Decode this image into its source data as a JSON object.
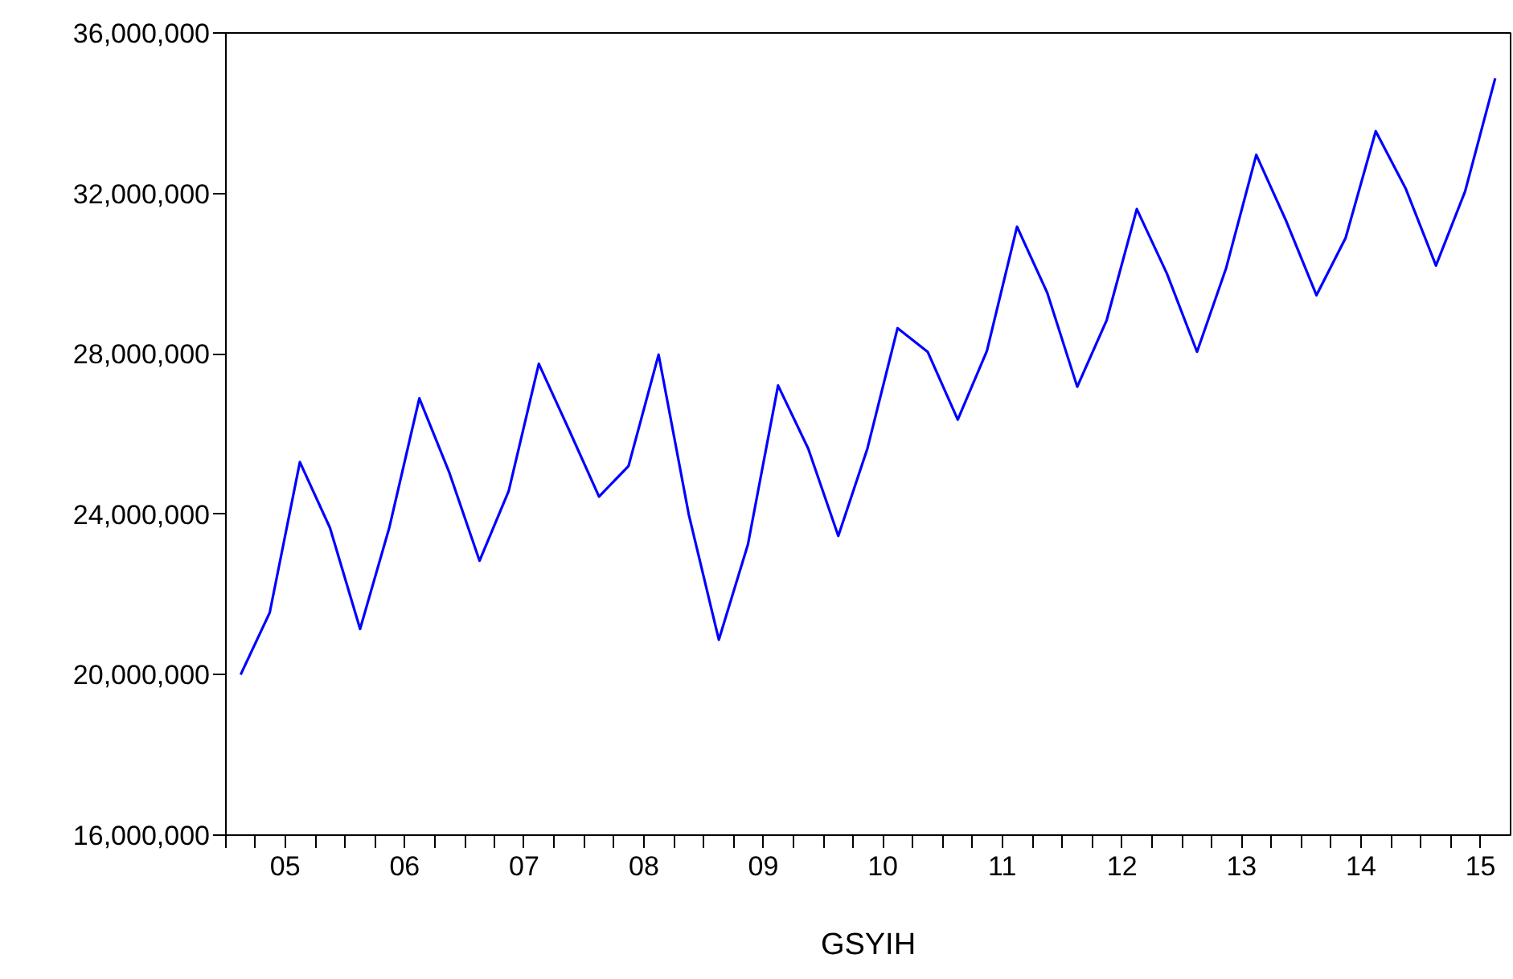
{
  "chart_data": {
    "type": "line",
    "xlabel": "GSYIH",
    "x": [
      "2005-02-15",
      "2005-05-15",
      "2005-08-15",
      "2005-11-15",
      "2006-02-15",
      "2006-05-15",
      "2006-08-15",
      "2006-11-15",
      "2007-02-15",
      "2007-05-15",
      "2007-08-15",
      "2007-11-15",
      "2008-02-15",
      "2008-05-15",
      "2008-08-15",
      "2008-11-15",
      "2009-02-15",
      "2009-05-15",
      "2009-08-15",
      "2009-11-15",
      "2010-02-15",
      "2010-05-15",
      "2010-08-15",
      "2010-11-15",
      "2011-02-15",
      "2011-05-15",
      "2011-08-15",
      "2011-11-15",
      "2012-02-15",
      "2012-05-15",
      "2012-08-15",
      "2012-11-15",
      "2013-02-15",
      "2013-05-15",
      "2013-08-15",
      "2013-11-15",
      "2014-02-15",
      "2014-05-15",
      "2014-08-15",
      "2014-11-15",
      "2015-02-15",
      "2015-05-15",
      "2015-08-15"
    ],
    "series": [
      {
        "color": "#0000ff",
        "values": [
          20000000,
          21550000,
          25300000,
          23660000,
          21140000,
          23660000,
          26890000,
          25030000,
          22840000,
          24580000,
          27750000,
          26110000,
          24440000,
          25200000,
          27980000,
          24000000,
          20870000,
          23250000,
          27210000,
          25640000,
          23460000,
          25640000,
          28640000,
          28050000,
          26360000,
          28070000,
          31170000,
          29530000,
          27180000,
          28840000,
          31610000,
          30000000,
          28050000,
          30140000,
          32960000,
          31300000,
          29460000,
          30890000,
          33550000,
          32110000,
          30200000,
          32050000,
          34870000
        ]
      }
    ],
    "xlim": [
      "2005-01-01",
      "2015-10-01"
    ],
    "xticks": [
      {
        "value": "2005-01-01",
        "label": null
      },
      {
        "value": "2005-04-01",
        "label": null
      },
      {
        "value": "2005-07-01",
        "label": "05"
      },
      {
        "value": "2005-10-01",
        "label": null
      },
      {
        "value": "2006-01-01",
        "label": null
      },
      {
        "value": "2006-04-01",
        "label": null
      },
      {
        "value": "2006-07-01",
        "label": "06"
      },
      {
        "value": "2006-10-01",
        "label": null
      },
      {
        "value": "2007-01-01",
        "label": null
      },
      {
        "value": "2007-04-01",
        "label": null
      },
      {
        "value": "2007-07-01",
        "label": "07"
      },
      {
        "value": "2007-10-01",
        "label": null
      },
      {
        "value": "2008-01-01",
        "label": null
      },
      {
        "value": "2008-04-01",
        "label": null
      },
      {
        "value": "2008-07-01",
        "label": "08"
      },
      {
        "value": "2008-10-01",
        "label": null
      },
      {
        "value": "2009-01-01",
        "label": null
      },
      {
        "value": "2009-04-01",
        "label": null
      },
      {
        "value": "2009-07-01",
        "label": "09"
      },
      {
        "value": "2009-10-01",
        "label": null
      },
      {
        "value": "2010-01-01",
        "label": null
      },
      {
        "value": "2010-04-01",
        "label": null
      },
      {
        "value": "2010-07-01",
        "label": "10"
      },
      {
        "value": "2010-10-01",
        "label": null
      },
      {
        "value": "2011-01-01",
        "label": null
      },
      {
        "value": "2011-04-01",
        "label": null
      },
      {
        "value": "2011-07-01",
        "label": "11"
      },
      {
        "value": "2011-10-01",
        "label": null
      },
      {
        "value": "2012-01-01",
        "label": null
      },
      {
        "value": "2012-04-01",
        "label": null
      },
      {
        "value": "2012-07-01",
        "label": "12"
      },
      {
        "value": "2012-10-01",
        "label": null
      },
      {
        "value": "2013-01-01",
        "label": null
      },
      {
        "value": "2013-04-01",
        "label": null
      },
      {
        "value": "2013-07-01",
        "label": "13"
      },
      {
        "value": "2013-10-01",
        "label": null
      },
      {
        "value": "2014-01-01",
        "label": null
      },
      {
        "value": "2014-04-01",
        "label": null
      },
      {
        "value": "2014-07-01",
        "label": "14"
      },
      {
        "value": "2014-10-01",
        "label": null
      },
      {
        "value": "2015-01-01",
        "label": null
      },
      {
        "value": "2015-04-01",
        "label": null
      },
      {
        "value": "2015-07-01",
        "label": "15"
      }
    ],
    "ylim": [
      16000000,
      36000000
    ],
    "yticks": [
      {
        "value": 16000000,
        "label": "16,000,000"
      },
      {
        "value": 20000000,
        "label": "20,000,000"
      },
      {
        "value": 24000000,
        "label": "24,000,000"
      },
      {
        "value": 28000000,
        "label": "28,000,000"
      },
      {
        "value": 32000000,
        "label": "32,000,000"
      },
      {
        "value": 36000000,
        "label": "36,000,000"
      }
    ],
    "line_style": "solid"
  }
}
